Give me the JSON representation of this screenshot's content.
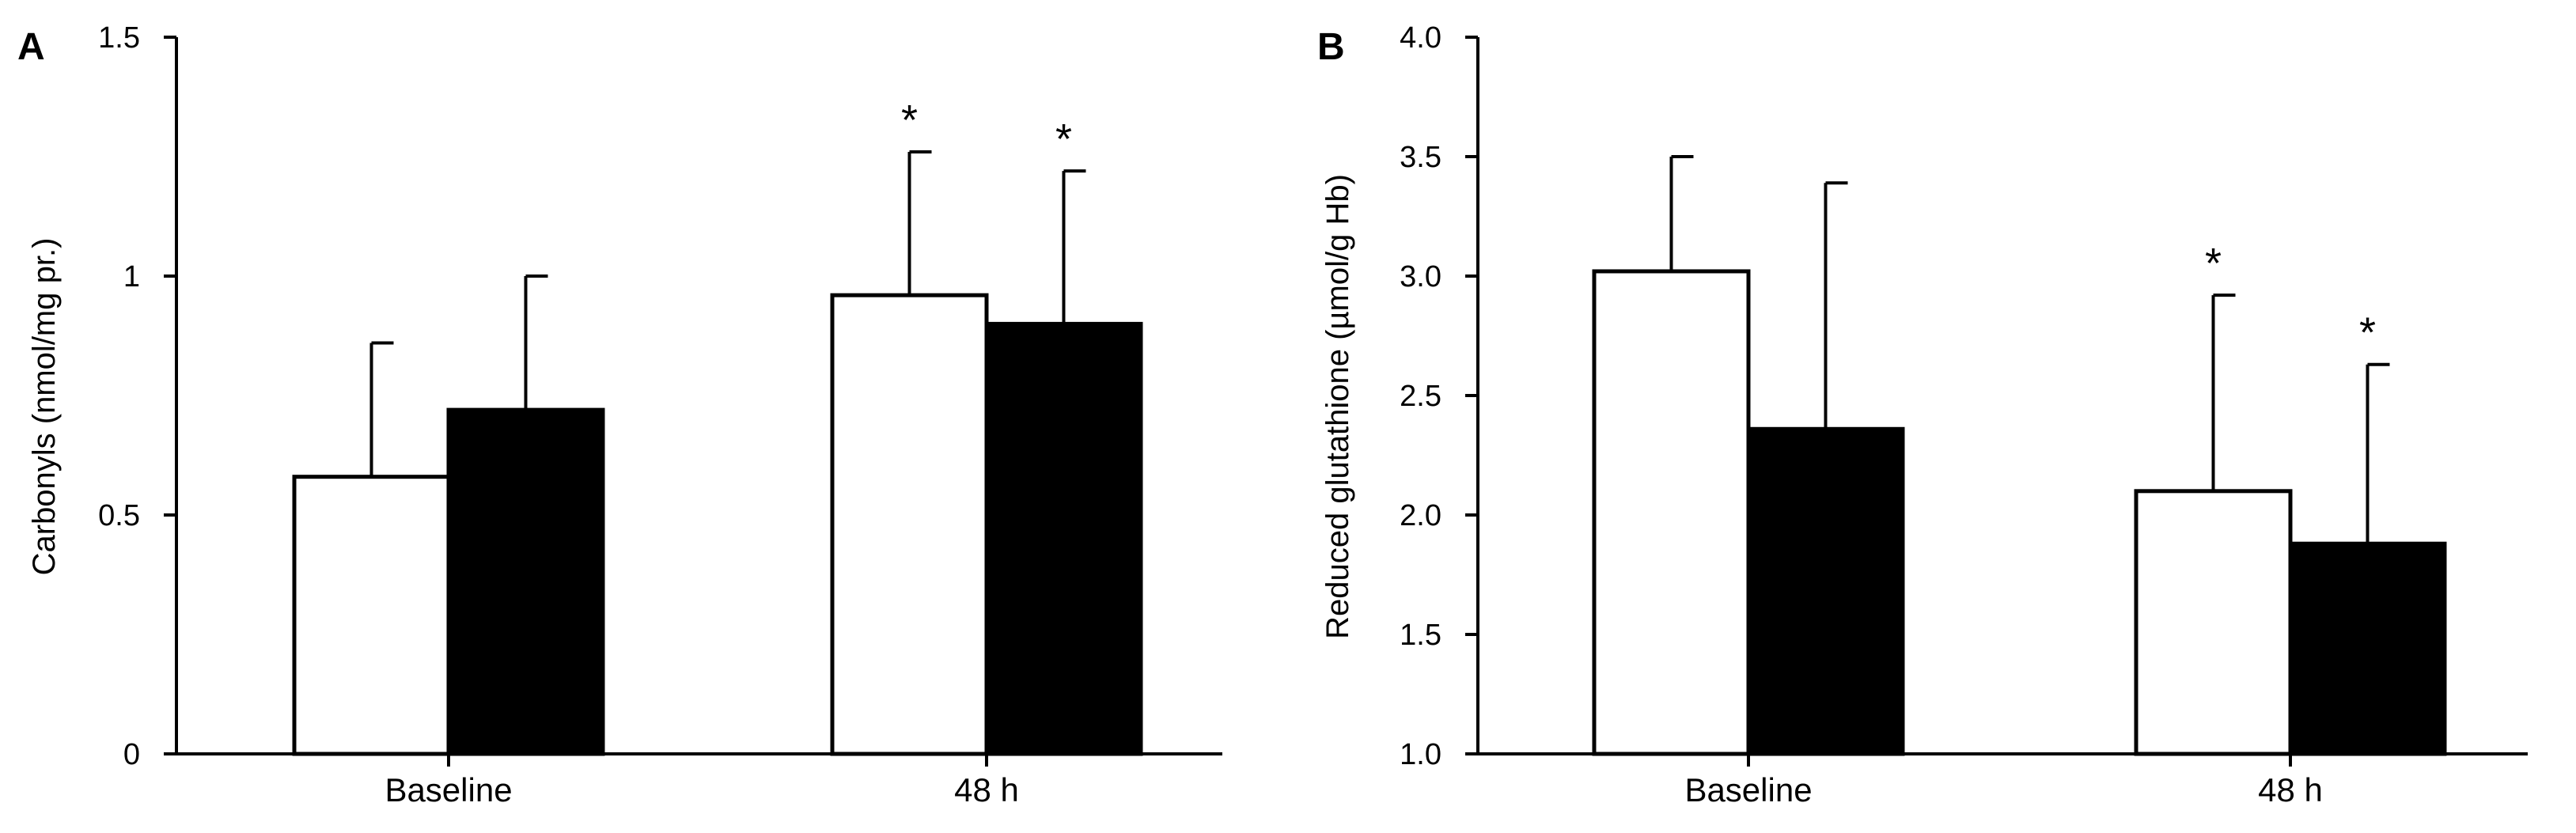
{
  "chart_data": [
    {
      "type": "bar",
      "panel": "A",
      "ylabel": "Carbonyls (nmol/mg pr.)",
      "xlabel": "",
      "ylim": [
        0,
        1.5
      ],
      "yticks": [
        0,
        0.5,
        1,
        1.5
      ],
      "ytick_labels": [
        "0",
        "0.5",
        "1",
        "1.5"
      ],
      "categories": [
        "Baseline",
        "48 h"
      ],
      "series": [
        {
          "name": "open bars",
          "fill": "#ffffff",
          "values": [
            0.58,
            0.96
          ],
          "errors": [
            0.28,
            0.3
          ],
          "significance": [
            "",
            "*"
          ]
        },
        {
          "name": "filled bars",
          "fill": "#000000",
          "values": [
            0.72,
            0.9
          ],
          "errors": [
            0.28,
            0.32
          ],
          "significance": [
            "",
            "*"
          ]
        }
      ]
    },
    {
      "type": "bar",
      "panel": "B",
      "ylabel": "Reduced glutathione (µmol/g Hb)",
      "xlabel": "",
      "ylim": [
        1.0,
        4.0
      ],
      "yticks": [
        1.0,
        1.5,
        2.0,
        2.5,
        3.0,
        3.5,
        4.0
      ],
      "ytick_labels": [
        "1.0",
        "1.5",
        "2.0",
        "2.5",
        "3.0",
        "3.5",
        "4.0"
      ],
      "categories": [
        "Baseline",
        "48 h"
      ],
      "series": [
        {
          "name": "open bars",
          "fill": "#ffffff",
          "values": [
            3.02,
            2.1
          ],
          "errors": [
            0.48,
            0.82
          ],
          "significance": [
            "",
            "*"
          ]
        },
        {
          "name": "filled bars",
          "fill": "#000000",
          "values": [
            2.36,
            1.88
          ],
          "errors": [
            1.03,
            0.75
          ],
          "significance": [
            "",
            "*"
          ]
        }
      ]
    }
  ]
}
